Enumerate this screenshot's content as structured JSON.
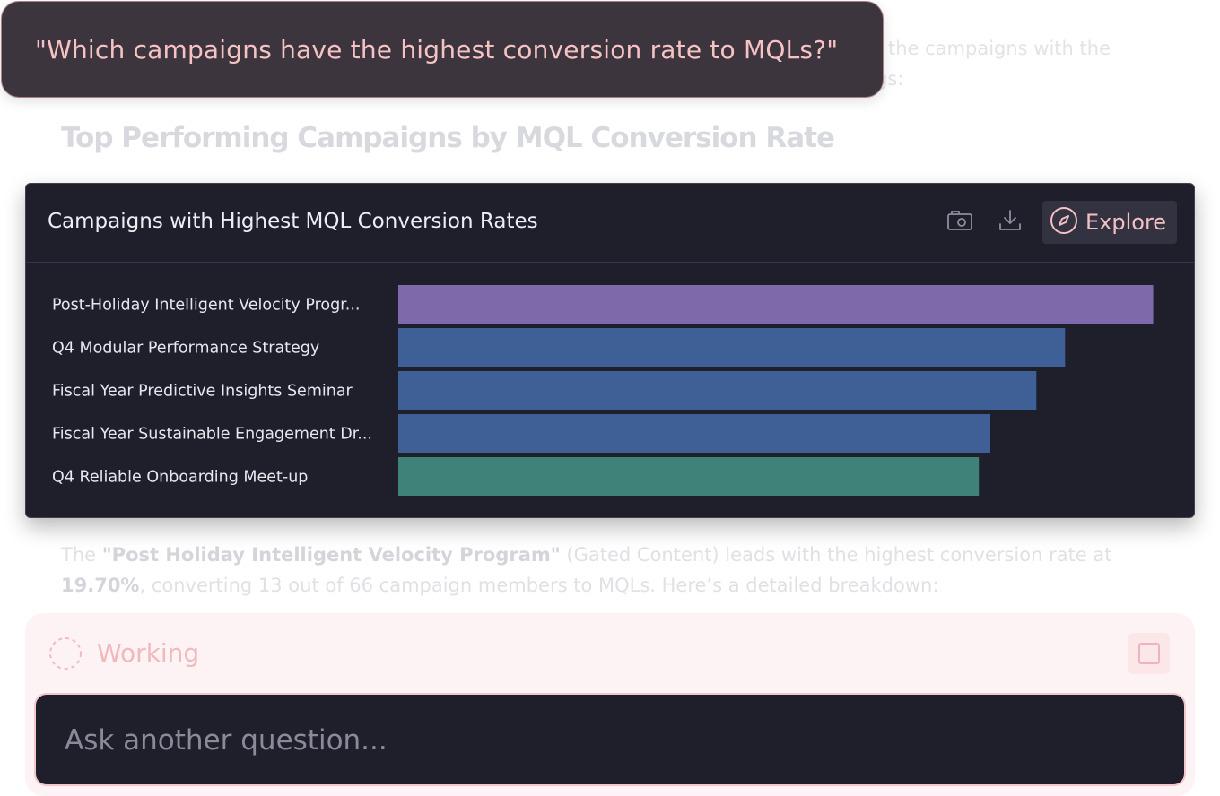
{
  "background": {
    "line1": "the campaigns with the",
    "line2": "gs:",
    "heading": "Top Performing Campaigns by MQL Conversion Rate",
    "para_pre": "The ",
    "para_bold1": "\"Post Holiday Intelligent Velocity Program\"",
    "para_mid": " (Gated Content) leads with the highest conversion rate at ",
    "para_bold2": "19.70%",
    "para_post": ", converting 13 out of 66 campaign members to MQLs. Here’s a detailed breakdown:"
  },
  "question": "\"Which campaigns have the highest conversion rate to MQLs?\"",
  "card": {
    "title": "Campaigns with Highest MQL Conversion Rates",
    "explore_label": "Explore",
    "icons": {
      "screenshot": "camera-icon",
      "download": "download-icon",
      "explore": "compass-icon"
    }
  },
  "chart_data": {
    "type": "bar",
    "orientation": "horizontal",
    "categories": [
      "Post-Holiday Intelligent Velocity Progr...",
      "Q4 Modular Performance Strategy",
      "Fiscal Year Predictive Insights Seminar",
      "Fiscal Year Sustainable Engagement Dr...",
      "Q4 Reliable Onboarding Meet-up"
    ],
    "values": [
      19.7,
      17.4,
      16.65,
      15.45,
      15.15
    ],
    "xlim": [
      0,
      20.6
    ],
    "colors": [
      "#7e6aab",
      "#3f5f97",
      "#3f5f97",
      "#3f5f97",
      "#3f827a"
    ]
  },
  "working": {
    "label": "Working",
    "icons": {
      "spinner": "spinner-icon",
      "stop": "stop-icon"
    }
  },
  "ask": {
    "placeholder": "Ask another question..."
  }
}
